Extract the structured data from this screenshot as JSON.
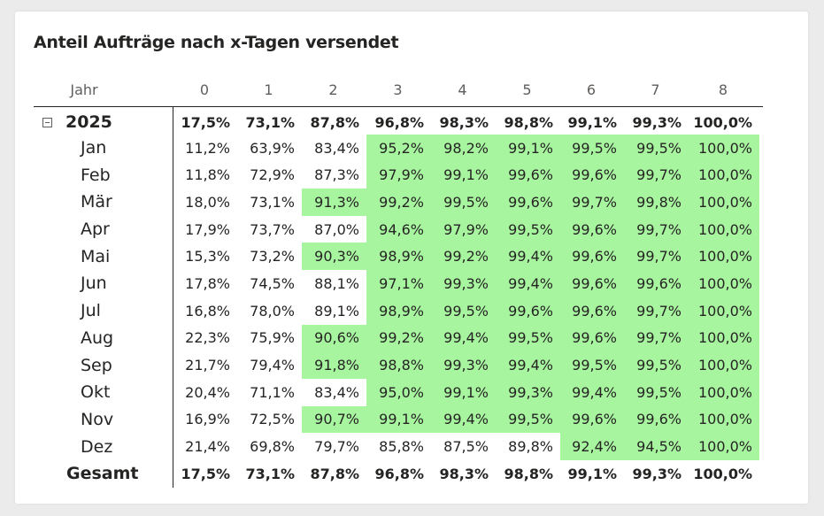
{
  "visual": {
    "title": "Anteil Aufträge nach x-Tagen versendet",
    "row_header": "Jahr",
    "columns": [
      "0",
      "1",
      "2",
      "3",
      "4",
      "5",
      "6",
      "7",
      "8"
    ],
    "highlight_color": "#a8f5a0",
    "year_row": {
      "label": "2025",
      "values": [
        "17,5%",
        "73,1%",
        "87,8%",
        "96,8%",
        "98,3%",
        "98,8%",
        "99,1%",
        "99,3%",
        "100,0%"
      ]
    },
    "months": [
      {
        "label": "Jan",
        "values": [
          "11,2%",
          "63,9%",
          "83,4%",
          "95,2%",
          "98,2%",
          "99,1%",
          "99,5%",
          "99,5%",
          "100,0%"
        ],
        "highlight_from": 3
      },
      {
        "label": "Feb",
        "values": [
          "11,8%",
          "72,9%",
          "87,3%",
          "97,9%",
          "99,1%",
          "99,6%",
          "99,6%",
          "99,7%",
          "100,0%"
        ],
        "highlight_from": 3
      },
      {
        "label": "Mär",
        "values": [
          "18,0%",
          "73,1%",
          "91,3%",
          "99,2%",
          "99,5%",
          "99,6%",
          "99,7%",
          "99,8%",
          "100,0%"
        ],
        "highlight_from": 2
      },
      {
        "label": "Apr",
        "values": [
          "17,9%",
          "73,7%",
          "87,0%",
          "94,6%",
          "97,9%",
          "99,5%",
          "99,6%",
          "99,7%",
          "100,0%"
        ],
        "highlight_from": 3
      },
      {
        "label": "Mai",
        "values": [
          "15,3%",
          "73,2%",
          "90,3%",
          "98,9%",
          "99,2%",
          "99,4%",
          "99,6%",
          "99,7%",
          "100,0%"
        ],
        "highlight_from": 2
      },
      {
        "label": "Jun",
        "values": [
          "17,8%",
          "74,5%",
          "88,1%",
          "97,1%",
          "99,3%",
          "99,4%",
          "99,6%",
          "99,6%",
          "100,0%"
        ],
        "highlight_from": 3
      },
      {
        "label": "Jul",
        "values": [
          "16,8%",
          "78,0%",
          "89,1%",
          "98,9%",
          "99,5%",
          "99,6%",
          "99,6%",
          "99,7%",
          "100,0%"
        ],
        "highlight_from": 3
      },
      {
        "label": "Aug",
        "values": [
          "22,3%",
          "75,9%",
          "90,6%",
          "99,2%",
          "99,4%",
          "99,5%",
          "99,6%",
          "99,7%",
          "100,0%"
        ],
        "highlight_from": 2
      },
      {
        "label": "Sep",
        "values": [
          "21,7%",
          "79,4%",
          "91,8%",
          "98,8%",
          "99,3%",
          "99,4%",
          "99,5%",
          "99,5%",
          "100,0%"
        ],
        "highlight_from": 2
      },
      {
        "label": "Okt",
        "values": [
          "20,4%",
          "71,1%",
          "83,4%",
          "95,0%",
          "99,1%",
          "99,3%",
          "99,4%",
          "99,5%",
          "100,0%"
        ],
        "highlight_from": 3
      },
      {
        "label": "Nov",
        "values": [
          "16,9%",
          "72,5%",
          "90,7%",
          "99,1%",
          "99,4%",
          "99,5%",
          "99,6%",
          "99,6%",
          "100,0%"
        ],
        "highlight_from": 2
      },
      {
        "label": "Dez",
        "values": [
          "21,4%",
          "69,8%",
          "79,7%",
          "85,8%",
          "87,5%",
          "89,8%",
          "92,4%",
          "94,5%",
          "100,0%"
        ],
        "highlight_from": 6
      }
    ],
    "total_row": {
      "label": "Gesamt",
      "values": [
        "17,5%",
        "73,1%",
        "87,8%",
        "96,8%",
        "98,3%",
        "98,8%",
        "99,1%",
        "99,3%",
        "100,0%"
      ]
    }
  }
}
